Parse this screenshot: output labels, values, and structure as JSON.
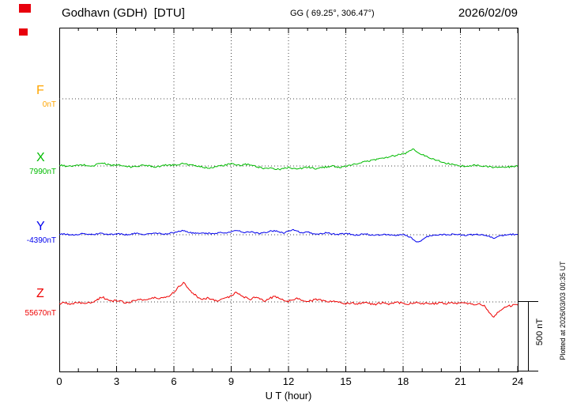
{
  "header": {
    "station_title": "Godhavn (GDH)  [DTU]",
    "coords": "GG ( 69.25°, 306.47°)",
    "date": "2026/02/09"
  },
  "footer": {
    "xlabel": "U T (hour)"
  },
  "scale_bar": {
    "label": "500 nT",
    "nT": 500
  },
  "side_note": "Plotted at 2026/03/03 00:35 UT",
  "logo": {
    "color": "#e8000d"
  },
  "chart_data": {
    "type": "line",
    "title": "Godhavn (GDH) [DTU] magnetogram 2026/02/09",
    "xlabel": "U T (hour)",
    "x_range_hours": [
      0,
      24
    ],
    "x_ticks": [
      0,
      3,
      6,
      9,
      12,
      15,
      18,
      21,
      24
    ],
    "x_tick_labels": [
      "0",
      "3",
      "6",
      "9",
      "12",
      "15",
      "18",
      "21",
      "24"
    ],
    "grid": "dotted vertical lines every 3 h; dotted horizontal baseline per component",
    "legend_position": "left baseline labels",
    "scale_nT_per_bar": 500,
    "sample_interval_hours": 0.25,
    "series": [
      {
        "name": "F",
        "baseline_label": "0nT",
        "baseline_nT": 0,
        "color": "#ffa500",
        "noise_amplitude_nT": 0,
        "offsets_nT": []
      },
      {
        "name": "X",
        "baseline_label": "7990nT",
        "baseline_nT": 7990,
        "color": "#00bb00",
        "noise_amplitude_nT": 6,
        "offsets_nT": [
          5,
          2,
          -3,
          0,
          4,
          8,
          3,
          -2,
          15,
          22,
          12,
          5,
          8,
          3,
          -4,
          -8,
          -3,
          2,
          6,
          1,
          -5,
          -2,
          4,
          9,
          5,
          12,
          18,
          10,
          4,
          -3,
          -8,
          -14,
          -9,
          -4,
          2,
          8,
          15,
          9,
          3,
          12,
          6,
          -2,
          -10,
          -18,
          -12,
          -20,
          -26,
          -18,
          -10,
          -16,
          -22,
          -14,
          -8,
          -15,
          -20,
          -12,
          -6,
          0,
          -5,
          -10,
          -4,
          5,
          14,
          22,
          30,
          38,
          45,
          52,
          58,
          65,
          72,
          80,
          88,
          96,
          125,
          98,
          80,
          68,
          55,
          42,
          30,
          20,
          12,
          6,
          2,
          -2,
          3,
          6,
          2,
          -3,
          -6,
          -10,
          -6,
          -12,
          -8,
          -4,
          -2
        ]
      },
      {
        "name": "Y",
        "baseline_label": "-4390nT",
        "baseline_nT": -4390,
        "color": "#0000ee",
        "noise_amplitude_nT": 5,
        "offsets_nT": [
          2,
          5,
          1,
          -2,
          3,
          7,
          4,
          0,
          6,
          10,
          5,
          2,
          7,
          4,
          0,
          5,
          9,
          6,
          2,
          7,
          11,
          8,
          4,
          10,
          16,
          24,
          30,
          20,
          12,
          8,
          14,
          10,
          6,
          12,
          18,
          12,
          20,
          32,
          24,
          16,
          22,
          14,
          8,
          16,
          24,
          30,
          22,
          14,
          26,
          34,
          22,
          12,
          18,
          10,
          4,
          8,
          14,
          8,
          2,
          6,
          10,
          4,
          -2,
          2,
          6,
          1,
          -4,
          0,
          4,
          -1,
          -6,
          -2,
          2,
          -8,
          -30,
          -55,
          -35,
          -15,
          -5,
          0,
          4,
          -2,
          2,
          6,
          1,
          -3,
          2,
          -2,
          3,
          -5,
          -12,
          -25,
          -12,
          -4,
          0,
          3,
          1
        ]
      },
      {
        "name": "Z",
        "baseline_label": "55670nT",
        "baseline_nT": 55670,
        "color": "#ee0000",
        "noise_amplitude_nT": 7,
        "offsets_nT": [
          -12,
          -8,
          -14,
          -10,
          -5,
          -12,
          -8,
          0,
          20,
          35,
          18,
          5,
          10,
          2,
          -6,
          2,
          12,
          20,
          14,
          22,
          30,
          24,
          34,
          45,
          70,
          110,
          140,
          100,
          60,
          35,
          20,
          28,
          18,
          10,
          20,
          30,
          45,
          65,
          50,
          30,
          20,
          32,
          22,
          10,
          24,
          38,
          28,
          14,
          6,
          18,
          26,
          12,
          2,
          10,
          18,
          8,
          0,
          8,
          2,
          -6,
          -12,
          -6,
          -14,
          -8,
          -4,
          -12,
          -18,
          -10,
          -6,
          -14,
          -8,
          -4,
          -10,
          -16,
          -10,
          -5,
          -12,
          -8,
          -14,
          -10,
          -6,
          -12,
          -8,
          -14,
          -10,
          -6,
          -12,
          -20,
          -15,
          -30,
          -75,
          -110,
          -70,
          -40,
          -30,
          -25,
          -22
        ]
      }
    ]
  }
}
